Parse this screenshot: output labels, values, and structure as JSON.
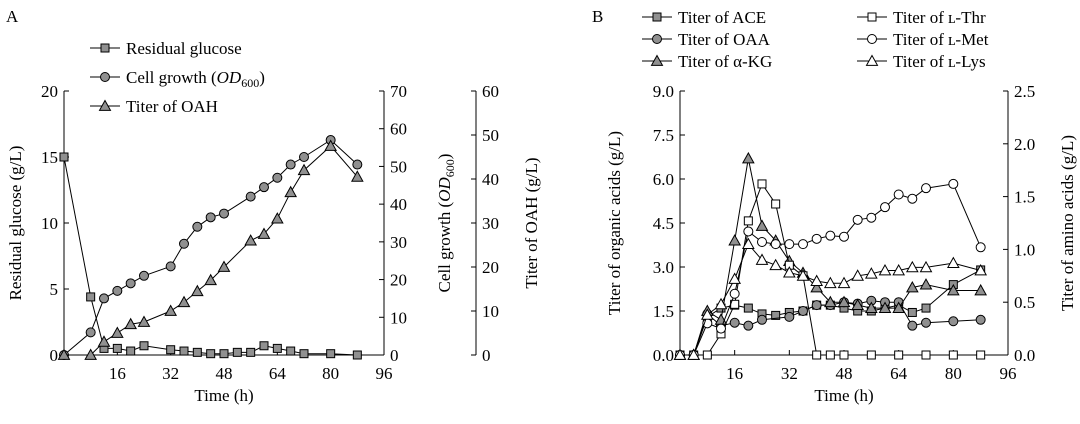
{
  "chart_data": [
    {
      "panel": "A",
      "type": "line",
      "xlabel": "Time (h)",
      "xlim": [
        0,
        96
      ],
      "xticks": [
        16,
        32,
        48,
        64,
        80,
        96
      ],
      "axes": {
        "left": {
          "label": "Residual glucose (g/L)",
          "ylim": [
            0,
            20
          ],
          "ticks": [
            0,
            5,
            10,
            15,
            20
          ]
        },
        "right1": {
          "label_main": "Cell growth (",
          "label_italic": "OD",
          "label_sub": "600",
          "label_end": ")",
          "ylim": [
            0,
            70
          ],
          "ticks": [
            0,
            10,
            20,
            30,
            40,
            50,
            60,
            70
          ]
        },
        "right2": {
          "label": "Titer of OAH (g/L)",
          "ylim": [
            0,
            60
          ],
          "ticks": [
            0,
            10,
            20,
            30,
            40,
            50,
            60
          ]
        }
      },
      "legend_position": "top",
      "series": [
        {
          "name": "Residual glucose",
          "marker": "square",
          "fill": "#909090",
          "axis": "left",
          "x": [
            0,
            8,
            12,
            16,
            20,
            24,
            32,
            36,
            40,
            44,
            48,
            52,
            56,
            60,
            64,
            68,
            72,
            80,
            88
          ],
          "y": [
            15,
            4.4,
            0.5,
            0.5,
            0.3,
            0.7,
            0.4,
            0.3,
            0.2,
            0.1,
            0.1,
            0.2,
            0.2,
            0.7,
            0.5,
            0.3,
            0.1,
            0.1,
            0
          ]
        },
        {
          "name_main": "Cell growth (",
          "name_italic": "OD",
          "name_sub": "600",
          "name_end": ")",
          "marker": "circle",
          "fill": "#909090",
          "axis": "right1",
          "x": [
            0,
            8,
            12,
            16,
            20,
            24,
            32,
            36,
            40,
            44,
            48,
            56,
            60,
            64,
            68,
            72,
            80,
            88
          ],
          "y": [
            0,
            6,
            15,
            17,
            19,
            21,
            23.5,
            29.5,
            34,
            36.5,
            37.5,
            42,
            44.5,
            47,
            50.5,
            52.5,
            57,
            50.5
          ]
        },
        {
          "name": "Titer of OAH",
          "marker": "triangle",
          "fill": "#909090",
          "axis": "right2",
          "x": [
            0,
            8,
            12,
            16,
            20,
            24,
            32,
            36,
            40,
            44,
            48,
            56,
            60,
            64,
            68,
            72,
            80,
            88
          ],
          "y": [
            0,
            0,
            3,
            5,
            7,
            7.5,
            10,
            12,
            14.5,
            17,
            20,
            26,
            27.5,
            31,
            37,
            42,
            47.5,
            40.5
          ]
        }
      ]
    },
    {
      "panel": "B",
      "type": "line",
      "xlabel": "Time (h)",
      "xlim": [
        0,
        96
      ],
      "xticks": [
        16,
        32,
        48,
        64,
        80,
        96
      ],
      "axes": {
        "left": {
          "label": "Titer of organic acids (g/L)",
          "ylim": [
            0,
            9
          ],
          "ticks": [
            "0.0",
            "1.5",
            "3.0",
            "4.5",
            "6.0",
            "7.5",
            "9.0"
          ]
        },
        "right": {
          "label": "Titer of amino acids (g/L)",
          "ylim": [
            0,
            2.5
          ],
          "ticks": [
            "0.0",
            "0.5",
            "1.0",
            "1.5",
            "2.0",
            "2.5"
          ]
        }
      },
      "legend_position": "top",
      "series": [
        {
          "name": "Titer of ACE",
          "marker": "square",
          "fill": "#909090",
          "axis": "left",
          "x": [
            0,
            4,
            8,
            12,
            16,
            20,
            24,
            28,
            32,
            36,
            40,
            44,
            48,
            52,
            56,
            60,
            64,
            68,
            72,
            80,
            88
          ],
          "y": [
            0,
            0,
            1.3,
            1.6,
            1.7,
            1.6,
            1.4,
            1.35,
            1.45,
            1.5,
            1.7,
            1.7,
            1.6,
            1.5,
            1.5,
            1.6,
            1.7,
            1.45,
            1.6,
            2.4,
            2.9
          ]
        },
        {
          "name": "Titer of OAA",
          "marker": "circle",
          "fill": "#909090",
          "axis": "left",
          "x": [
            0,
            4,
            8,
            12,
            16,
            20,
            24,
            32,
            36,
            40,
            44,
            48,
            52,
            56,
            60,
            64,
            68,
            72,
            80,
            88
          ],
          "y": [
            0,
            0,
            1.4,
            1.0,
            1.1,
            1.0,
            1.2,
            1.3,
            1.5,
            1.7,
            1.7,
            1.8,
            1.75,
            1.85,
            1.8,
            1.8,
            1.0,
            1.1,
            1.15,
            1.2
          ]
        },
        {
          "name": "Titer of α-KG",
          "marker": "triangle",
          "fill": "#909090",
          "axis": "left",
          "x": [
            0,
            4,
            8,
            12,
            16,
            20,
            24,
            28,
            32,
            36,
            40,
            44,
            48,
            52,
            56,
            60,
            64,
            68,
            72,
            80,
            88
          ],
          "y": [
            0,
            0,
            1.5,
            1.2,
            3.9,
            6.7,
            4.4,
            3.9,
            3.2,
            2.8,
            2.3,
            1.8,
            1.8,
            1.7,
            1.6,
            1.6,
            1.6,
            2.3,
            2.4,
            2.2,
            2.2
          ]
        },
        {
          "name": "Titer of ʟ-Thr",
          "marker": "square",
          "fill": "#ffffff",
          "axis": "right",
          "x": [
            0,
            8,
            12,
            16,
            20,
            24,
            28,
            32,
            36,
            40,
            44,
            48,
            56,
            64,
            72,
            80,
            88
          ],
          "y": [
            0,
            0,
            0.2,
            0.48,
            1.27,
            1.62,
            1.43,
            0.85,
            0.75,
            0,
            0,
            0,
            0,
            0,
            0,
            0,
            0
          ]
        },
        {
          "name": "Titer of ʟ-Met",
          "marker": "circle",
          "fill": "#ffffff",
          "axis": "right",
          "x": [
            0,
            4,
            8,
            12,
            16,
            20,
            24,
            28,
            32,
            36,
            40,
            44,
            48,
            52,
            56,
            60,
            64,
            68,
            72,
            80,
            88
          ],
          "y": [
            0,
            0,
            0.3,
            0.25,
            0.58,
            1.17,
            1.07,
            1.05,
            1.05,
            1.05,
            1.1,
            1.13,
            1.12,
            1.28,
            1.3,
            1.4,
            1.52,
            1.48,
            1.58,
            1.62,
            1.02
          ]
        },
        {
          "name": "Titer of ʟ-Lys",
          "marker": "triangle",
          "fill": "#ffffff",
          "axis": "right",
          "x": [
            0,
            4,
            8,
            12,
            16,
            20,
            24,
            28,
            32,
            36,
            40,
            44,
            48,
            52,
            56,
            60,
            64,
            68,
            72,
            80,
            88
          ],
          "y": [
            0,
            0,
            0.38,
            0.48,
            0.72,
            1.05,
            0.9,
            0.85,
            0.78,
            0.75,
            0.7,
            0.68,
            0.68,
            0.75,
            0.77,
            0.8,
            0.8,
            0.83,
            0.83,
            0.87,
            0.8
          ]
        }
      ]
    }
  ]
}
